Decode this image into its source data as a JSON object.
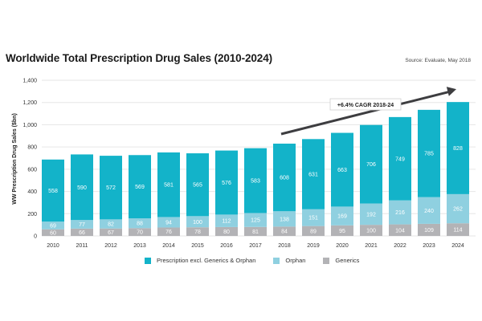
{
  "chart_data": {
    "type": "bar",
    "stacked": true,
    "title": "Worldwide Total Prescription Drug Sales (2010-2024)",
    "source": "Source: Evaluate, May 2018",
    "xlabel": "",
    "ylabel": "WW Prescription Drug Sales ($bn)",
    "ylim": [
      0,
      1400
    ],
    "yticks": [
      0,
      200,
      400,
      600,
      800,
      1000,
      1200,
      1400
    ],
    "ytick_labels": [
      "0",
      "200",
      "400",
      "600",
      "800",
      "1,000",
      "1,200",
      "1,400"
    ],
    "grid": true,
    "categories": [
      "2010",
      "2011",
      "2012",
      "2013",
      "2014",
      "2015",
      "2016",
      "2017",
      "2018",
      "2019",
      "2020",
      "2021",
      "2022",
      "2023",
      "2024"
    ],
    "series": [
      {
        "name": "Generics",
        "color": "#b3b3b6",
        "values": [
          60,
          66,
          67,
          70,
          76,
          78,
          80,
          81,
          84,
          89,
          95,
          100,
          104,
          109,
          114
        ]
      },
      {
        "name": "Orphan",
        "color": "#8fd0e0",
        "values": [
          69,
          77,
          82,
          88,
          94,
          100,
          112,
          125,
          138,
          151,
          169,
          192,
          216,
          240,
          262
        ]
      },
      {
        "name": "Prescription excl. Generics & Orphan",
        "color": "#13b3c9",
        "values": [
          558,
          590,
          572,
          569,
          581,
          565,
          576,
          583,
          608,
          631,
          663,
          706,
          749,
          785,
          828
        ]
      }
    ],
    "legend": {
      "placement": "bottom",
      "entries": [
        "Prescription excl. Generics & Orphan",
        "Orphan",
        "Generics"
      ]
    },
    "annotation": {
      "text": "+6.4% CAGR 2018-24",
      "arrow_from": "2018",
      "arrow_to": "2024",
      "arrow_color": "#3d3d40"
    }
  }
}
